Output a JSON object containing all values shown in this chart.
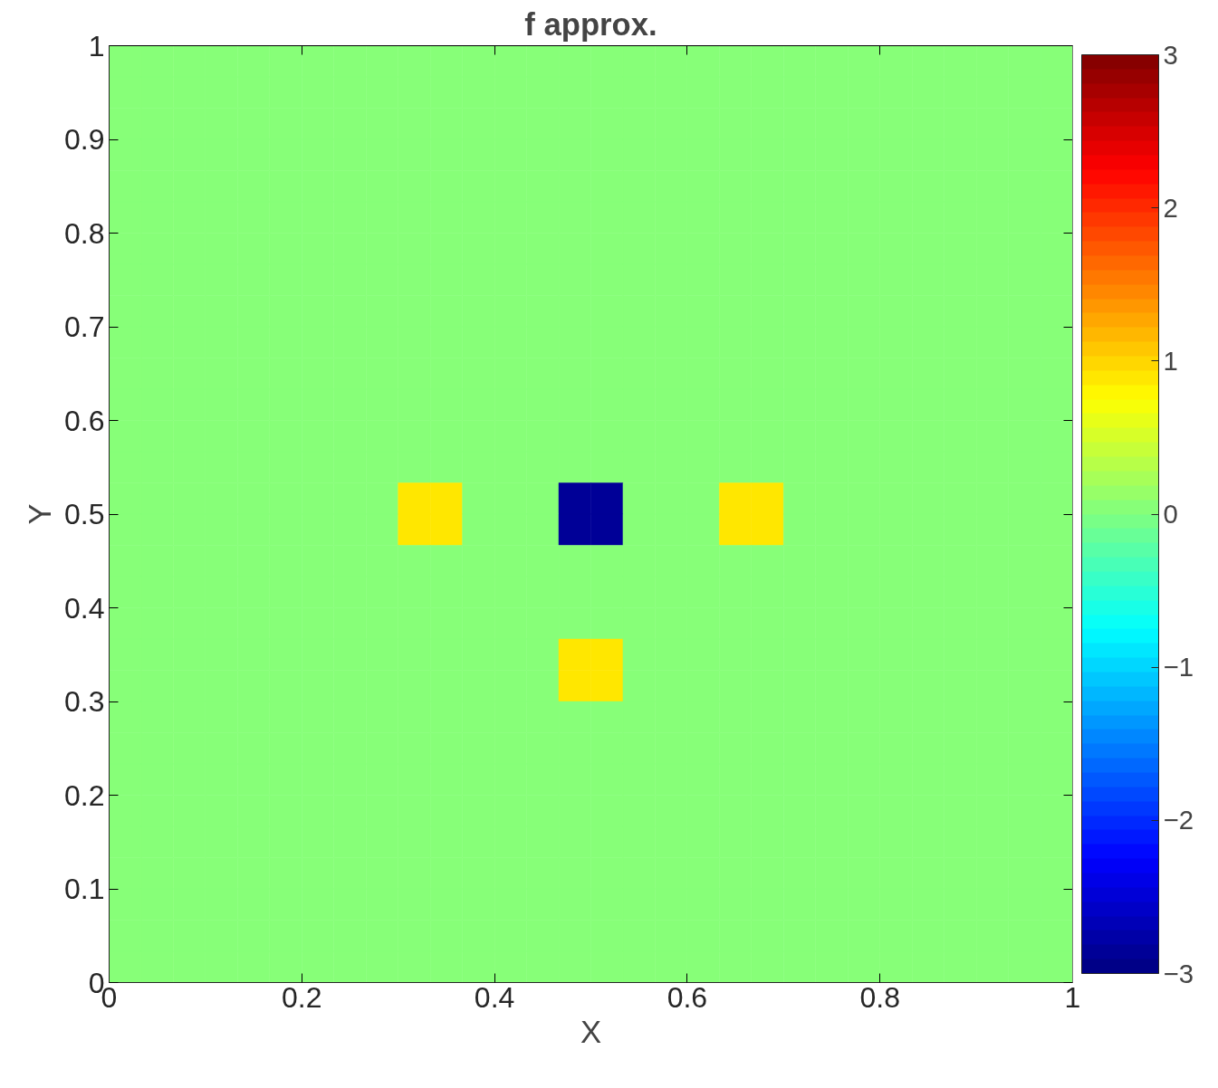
{
  "chart_data": {
    "type": "heatmap",
    "title": "f approx.",
    "xlabel": "X",
    "ylabel": "Y",
    "xlim": [
      0,
      1
    ],
    "ylim": [
      0,
      1
    ],
    "xticks": [
      0,
      0.2,
      0.4,
      0.6,
      0.8,
      1
    ],
    "yticks": [
      0,
      0.1,
      0.2,
      0.3,
      0.4,
      0.5,
      0.6,
      0.7,
      0.8,
      0.9,
      1
    ],
    "clim": [
      -3,
      3
    ],
    "cticks": [
      -3,
      -2,
      -1,
      0,
      1,
      2,
      3
    ],
    "cells": [
      [
        0,
        0,
        0,
        0,
        0,
        0,
        0,
        0,
        0,
        0,
        0,
        0,
        0,
        0,
        0,
        0,
        0,
        0,
        0,
        0,
        0,
        0,
        0,
        0,
        0,
        0,
        0,
        0,
        0,
        0
      ],
      [
        0,
        0,
        0,
        0,
        0,
        0,
        0,
        0,
        0,
        0,
        0,
        0,
        0,
        0,
        0,
        0,
        0,
        0,
        0,
        0,
        0,
        0,
        0,
        0,
        0,
        0,
        0,
        0,
        0,
        0
      ],
      [
        0,
        0,
        0,
        0,
        0,
        0,
        0,
        0,
        0,
        0,
        0,
        0,
        0,
        0,
        0,
        0,
        0,
        0,
        0,
        0,
        0,
        0,
        0,
        0,
        0,
        0,
        0,
        0,
        0,
        0
      ],
      [
        0,
        0,
        0,
        0,
        0,
        0,
        0,
        0,
        0,
        0,
        0,
        0,
        0,
        0,
        0,
        0,
        0,
        0,
        0,
        0,
        0,
        0,
        0,
        0,
        0,
        0,
        0,
        0,
        0,
        0
      ],
      [
        0,
        0,
        0,
        0,
        0,
        0,
        0,
        0,
        0,
        0,
        0,
        0,
        0,
        0,
        0,
        0,
        0,
        0,
        0,
        0,
        0,
        0,
        0,
        0,
        0,
        0,
        0,
        0,
        0,
        0
      ],
      [
        0,
        0,
        0,
        0,
        0,
        0,
        0,
        0,
        0,
        0,
        0,
        0,
        0,
        0,
        0,
        0,
        0,
        0,
        0,
        0,
        0,
        0,
        0,
        0,
        0,
        0,
        0,
        0,
        0,
        0
      ],
      [
        0,
        0,
        0,
        0,
        0,
        0,
        0,
        0,
        0,
        0,
        0,
        0,
        0,
        0,
        0,
        0,
        0,
        0,
        0,
        0,
        0,
        0,
        0,
        0,
        0,
        0,
        0,
        0,
        0,
        0
      ],
      [
        0,
        0,
        0,
        0,
        0,
        0,
        0,
        0,
        0,
        0,
        0,
        0,
        0,
        0,
        0,
        0,
        0,
        0,
        0,
        0,
        0,
        0,
        0,
        0,
        0,
        0,
        0,
        0,
        0,
        0
      ],
      [
        0,
        0,
        0,
        0,
        0,
        0,
        0,
        0,
        0,
        0,
        0,
        0,
        0,
        0,
        0,
        0,
        0,
        0,
        0,
        0,
        0,
        0,
        0,
        0,
        0,
        0,
        0,
        0,
        0,
        0
      ],
      [
        0,
        0,
        0,
        0,
        0,
        0,
        0,
        0,
        0,
        0,
        0,
        0,
        0,
        0,
        0,
        0,
        0,
        0,
        0,
        0,
        0,
        0,
        0,
        0,
        0,
        0,
        0,
        0,
        0,
        0
      ],
      [
        0,
        0,
        0,
        0,
        0,
        0,
        0,
        0,
        0,
        0,
        0,
        0,
        0,
        0,
        0,
        0,
        0,
        0,
        0,
        0,
        0,
        0,
        0,
        0,
        0,
        0,
        0,
        0,
        0,
        0
      ],
      [
        0,
        0,
        0,
        0,
        0,
        0,
        0,
        0,
        0,
        0,
        0,
        0,
        0,
        0,
        0,
        0,
        0,
        0,
        0,
        0,
        0,
        0,
        0,
        0,
        0,
        0,
        0,
        0,
        0,
        0
      ],
      [
        0,
        0,
        0,
        0,
        0,
        0,
        0,
        0,
        0,
        0,
        0,
        0,
        0,
        0,
        0,
        0,
        0,
        0,
        0,
        0,
        0,
        0,
        0,
        0,
        0,
        0,
        0,
        0,
        0,
        0
      ],
      [
        0,
        0,
        0,
        0,
        0,
        0,
        0,
        0,
        0,
        0,
        0,
        0,
        0,
        0,
        0,
        0,
        0,
        0,
        0,
        0,
        0,
        0,
        0,
        0,
        0,
        0,
        0,
        0,
        0,
        0
      ],
      [
        0,
        0,
        0,
        0,
        0,
        0,
        0,
        0,
        0,
        0.9,
        0.9,
        0,
        0,
        0,
        -2.9,
        -2.9,
        0,
        0,
        0,
        0.9,
        0.9,
        0,
        0,
        0,
        0,
        0,
        0,
        0,
        0,
        0
      ],
      [
        0,
        0,
        0,
        0,
        0,
        0,
        0,
        0,
        0,
        0.9,
        0.9,
        0,
        0,
        0,
        -2.9,
        -2.9,
        0,
        0,
        0,
        0.9,
        0.9,
        0,
        0,
        0,
        0,
        0,
        0,
        0,
        0,
        0
      ],
      [
        0,
        0,
        0,
        0,
        0,
        0,
        0,
        0,
        0,
        0,
        0,
        0,
        0,
        0,
        0,
        0,
        0,
        0,
        0,
        0,
        0,
        0,
        0,
        0,
        0,
        0,
        0,
        0,
        0,
        0
      ],
      [
        0,
        0,
        0,
        0,
        0,
        0,
        0,
        0,
        0,
        0,
        0,
        0,
        0,
        0,
        0,
        0,
        0,
        0,
        0,
        0,
        0,
        0,
        0,
        0,
        0,
        0,
        0,
        0,
        0,
        0
      ],
      [
        0,
        0,
        0,
        0,
        0,
        0,
        0,
        0,
        0,
        0,
        0,
        0,
        0,
        0,
        0,
        0,
        0,
        0,
        0,
        0,
        0,
        0,
        0,
        0,
        0,
        0,
        0,
        0,
        0,
        0
      ],
      [
        0,
        0,
        0,
        0,
        0,
        0,
        0,
        0,
        0,
        0,
        0,
        0,
        0,
        0,
        0.9,
        0.9,
        0,
        0,
        0,
        0,
        0,
        0,
        0,
        0,
        0,
        0,
        0,
        0,
        0,
        0
      ],
      [
        0,
        0,
        0,
        0,
        0,
        0,
        0,
        0,
        0,
        0,
        0,
        0,
        0,
        0,
        0.9,
        0.9,
        0,
        0,
        0,
        0,
        0,
        0,
        0,
        0,
        0,
        0,
        0,
        0,
        0,
        0
      ],
      [
        0,
        0,
        0,
        0,
        0,
        0,
        0,
        0,
        0,
        0,
        0,
        0,
        0,
        0,
        0,
        0,
        0,
        0,
        0,
        0,
        0,
        0,
        0,
        0,
        0,
        0,
        0,
        0,
        0,
        0
      ],
      [
        0,
        0,
        0,
        0,
        0,
        0,
        0,
        0,
        0,
        0,
        0,
        0,
        0,
        0,
        0,
        0,
        0,
        0,
        0,
        0,
        0,
        0,
        0,
        0,
        0,
        0,
        0,
        0,
        0,
        0
      ],
      [
        0,
        0,
        0,
        0,
        0,
        0,
        0,
        0,
        0,
        0,
        0,
        0,
        0,
        0,
        0,
        0,
        0,
        0,
        0,
        0,
        0,
        0,
        0,
        0,
        0,
        0,
        0,
        0,
        0,
        0
      ],
      [
        0,
        0,
        0,
        0,
        0,
        0,
        0,
        0,
        0,
        0,
        0,
        0,
        0,
        0,
        0,
        0,
        0,
        0,
        0,
        0,
        0,
        0,
        0,
        0,
        0,
        0,
        0,
        0,
        0,
        0
      ],
      [
        0,
        0,
        0,
        0,
        0,
        0,
        0,
        0,
        0,
        0,
        0,
        0,
        0,
        0,
        0,
        0,
        0,
        0,
        0,
        0,
        0,
        0,
        0,
        0,
        0,
        0,
        0,
        0,
        0,
        0
      ],
      [
        0,
        0,
        0,
        0,
        0,
        0,
        0,
        0,
        0,
        0,
        0,
        0,
        0,
        0,
        0,
        0,
        0,
        0,
        0,
        0,
        0,
        0,
        0,
        0,
        0,
        0,
        0,
        0,
        0,
        0
      ],
      [
        0,
        0,
        0,
        0,
        0,
        0,
        0,
        0,
        0,
        0,
        0,
        0,
        0,
        0,
        0,
        0,
        0,
        0,
        0,
        0,
        0,
        0,
        0,
        0,
        0,
        0,
        0,
        0,
        0,
        0
      ],
      [
        0,
        0,
        0,
        0,
        0,
        0,
        0,
        0,
        0,
        0,
        0,
        0,
        0,
        0,
        0,
        0,
        0,
        0,
        0,
        0,
        0,
        0,
        0,
        0,
        0,
        0,
        0,
        0,
        0,
        0
      ],
      [
        0,
        0,
        0,
        0,
        0,
        0,
        0,
        0,
        0,
        0,
        0,
        0,
        0,
        0,
        0,
        0,
        0,
        0,
        0,
        0,
        0,
        0,
        0,
        0,
        0,
        0,
        0,
        0,
        0,
        0
      ]
    ]
  }
}
